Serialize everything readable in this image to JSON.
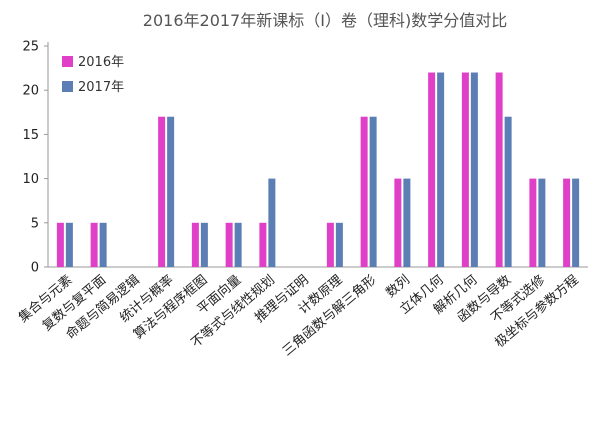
{
  "chart_data": {
    "type": "bar",
    "title": "2016年2017年新课标（Ⅰ）卷（理科)数学分值对比",
    "xlabel": "",
    "ylabel": "",
    "ylim": [
      0,
      25
    ],
    "yticks": [
      0,
      5,
      10,
      15,
      20,
      25
    ],
    "grid": false,
    "legend_position": "top-left",
    "categories": [
      "集合与元素",
      "复数与复平面",
      "命题与简易逻辑",
      "统计与概率",
      "算法与程序框图",
      "平面向量",
      "不等式与线性规划",
      "推理与证明",
      "计数原理",
      "三角函数与解三角形",
      "数列",
      "立体几何",
      "解析几何",
      "函数与导数",
      "不等式选修",
      "极坐标与参数方程"
    ],
    "series": [
      {
        "name": "2016年",
        "color": "#e040c8",
        "values": [
          5,
          5,
          0,
          17,
          5,
          5,
          5,
          0,
          5,
          17,
          10,
          22,
          22,
          22,
          10,
          10
        ]
      },
      {
        "name": "2017年",
        "color": "#5b7fb5",
        "values": [
          5,
          5,
          0,
          17,
          5,
          5,
          10,
          0,
          5,
          17,
          10,
          22,
          22,
          17,
          10,
          10
        ]
      }
    ]
  }
}
